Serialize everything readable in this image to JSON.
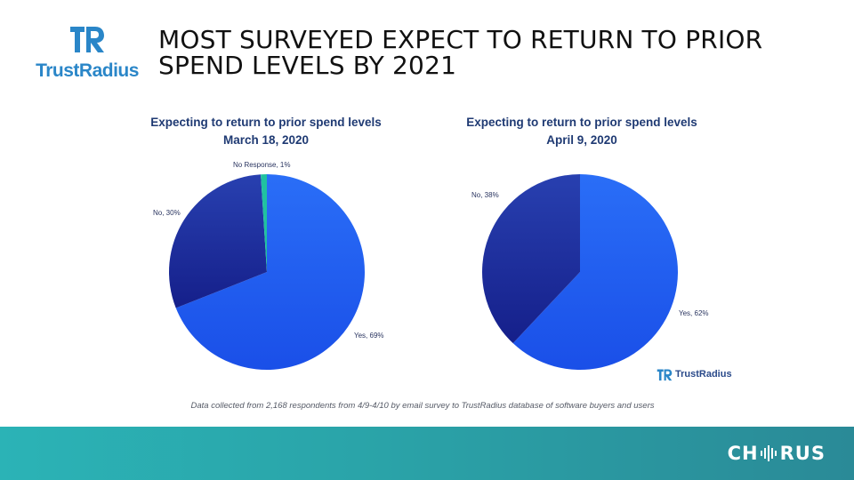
{
  "header": {
    "logo_text": "TrustRadius",
    "title": "MOST SURVEYED EXPECT TO RETURN TO PRIOR SPEND LEVELS BY 2021"
  },
  "colors": {
    "yes": "#1f5cf2",
    "no": "#1b2a9c",
    "no_response": "#20c2a0",
    "title_blue": "#1f3a73",
    "footer_teal": "#2aa3a8"
  },
  "chart_data": [
    {
      "type": "pie",
      "title": "Expecting to return to prior spend levels",
      "subtitle": "March 18, 2020",
      "slices": [
        {
          "label": "Yes, 69%",
          "value": 69
        },
        {
          "label": "No, 30%",
          "value": 30
        },
        {
          "label": "No Response, 1%",
          "value": 1
        }
      ]
    },
    {
      "type": "pie",
      "title": "Expecting to return to prior spend levels",
      "subtitle": "April 9, 2020",
      "slices": [
        {
          "label": "Yes, 62%",
          "value": 62
        },
        {
          "label": "No, 38%",
          "value": 38
        }
      ]
    }
  ],
  "watermark_logo_text": "TrustRadius",
  "footnote": "Data collected from 2,168 respondents from 4/9-4/10 by email survey to TrustRadius database of software buyers and users",
  "footer": {
    "brand_before": "CH",
    "brand_after": "RUS"
  }
}
